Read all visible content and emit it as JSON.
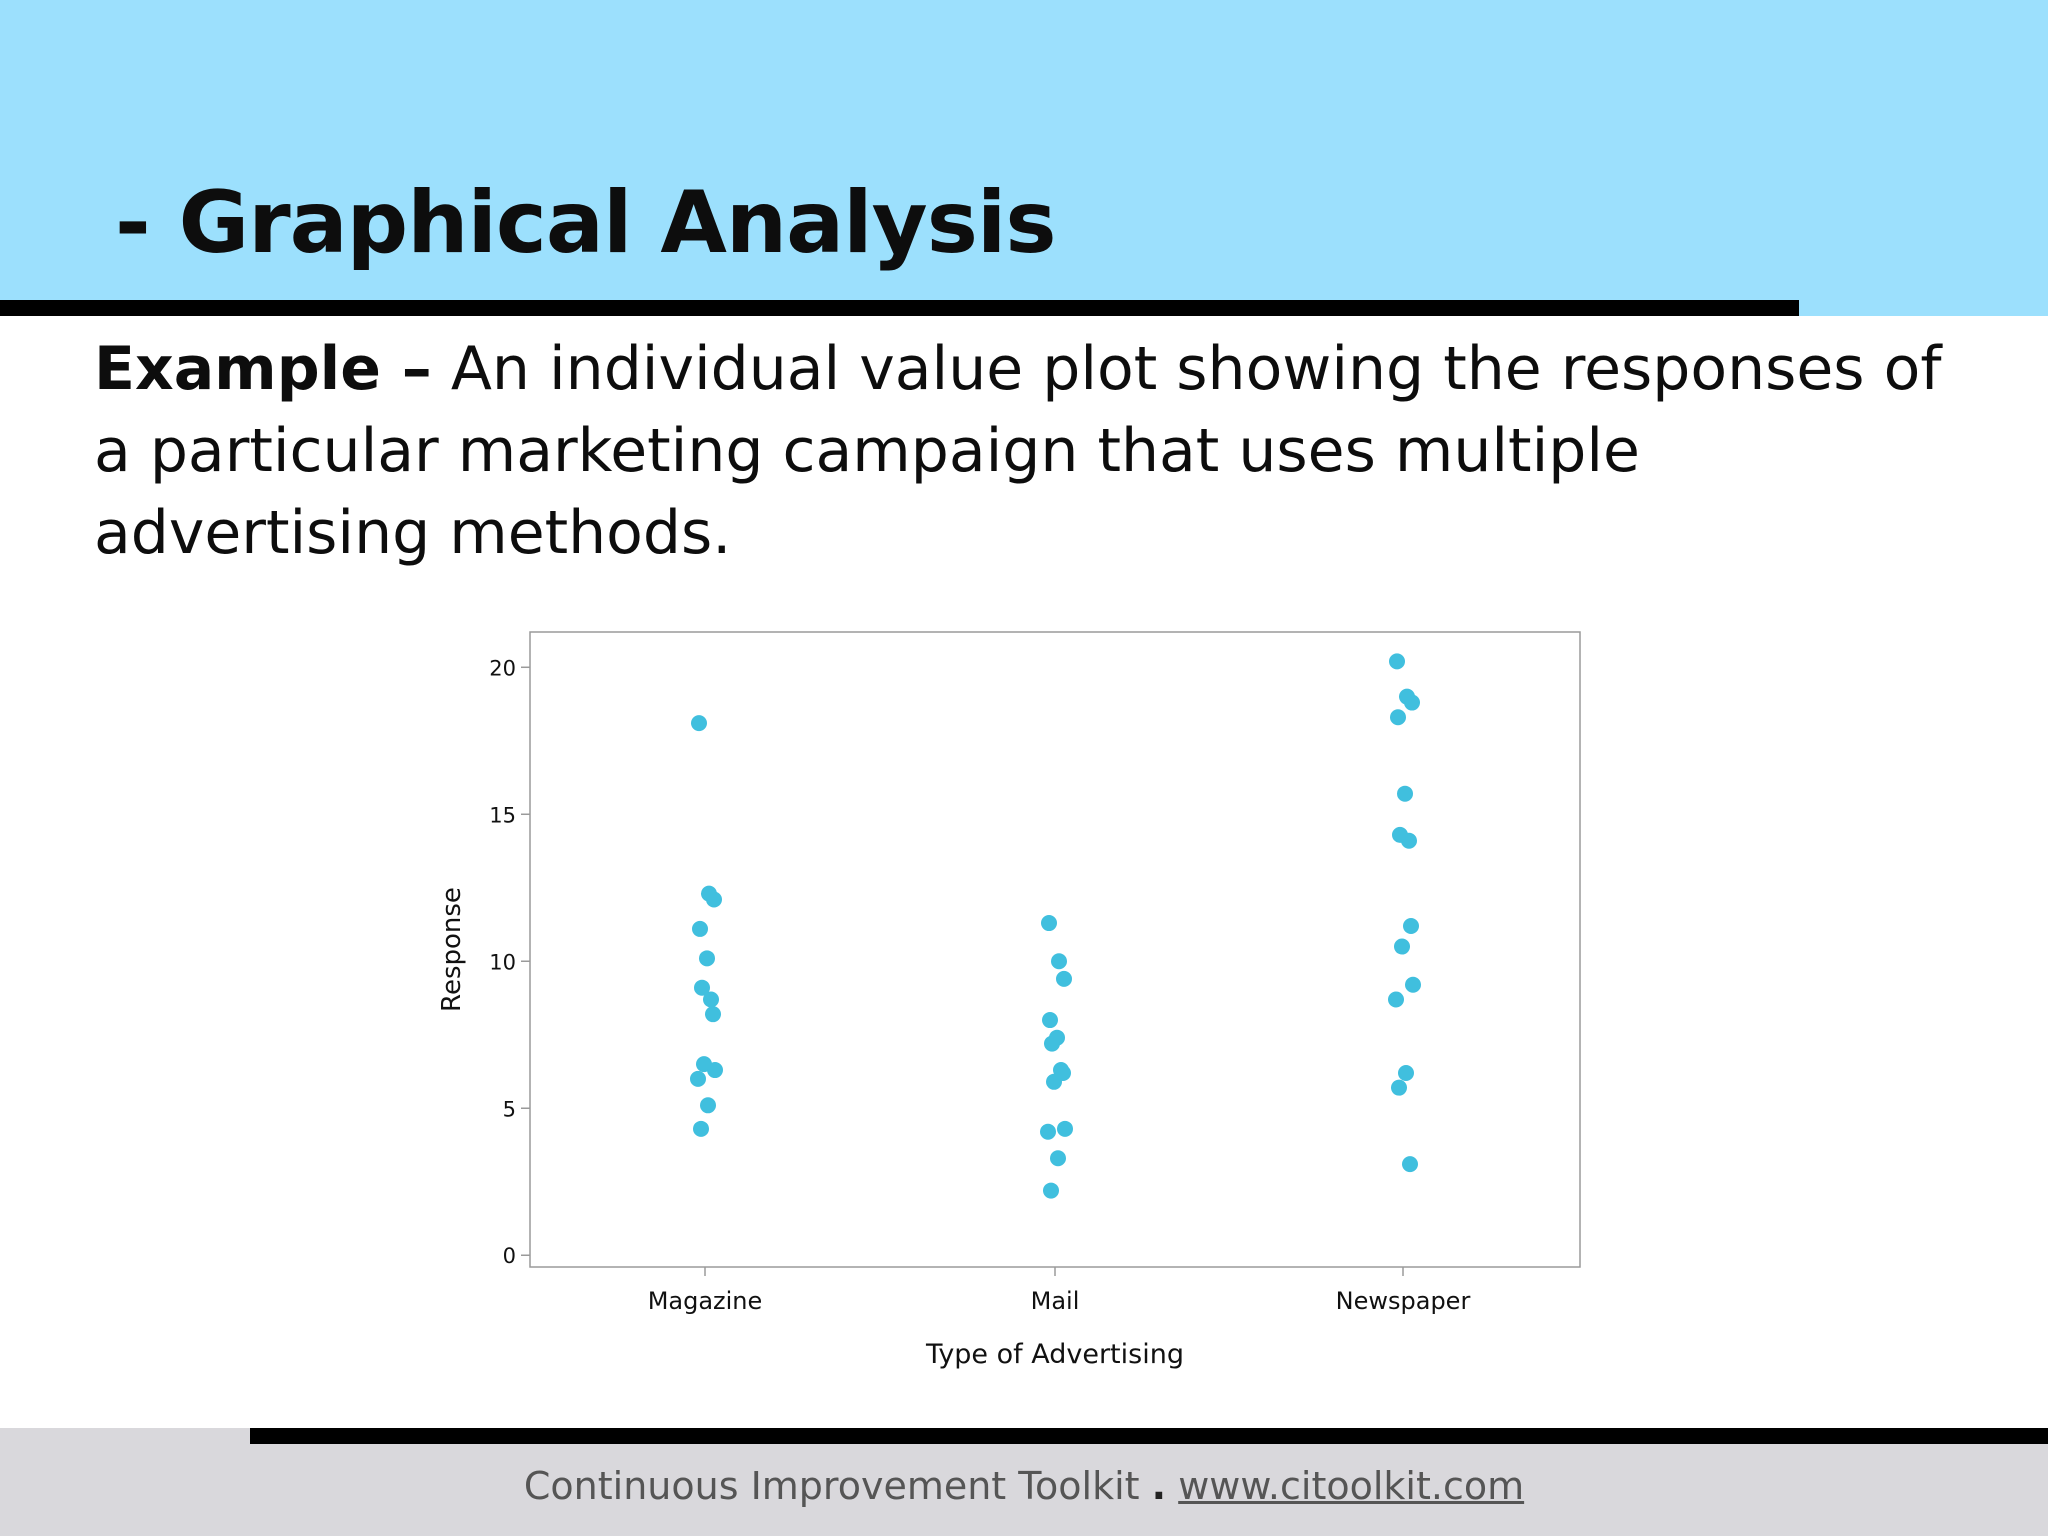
{
  "slide": {
    "title": "- Graphical Analysis",
    "body_lead": "Example –",
    "body_text": " An individual value plot showing the responses of a particular marketing campaign that uses multiple advertising methods."
  },
  "footer": {
    "org": "Continuous Improvement Toolkit",
    "separator": ".",
    "url": "www.citoolkit.com"
  },
  "colors": {
    "header_band": "#9ce0fd",
    "point": "#40bfde",
    "footer_band": "#d9d8dc"
  },
  "chart_data": {
    "type": "scatter",
    "subtype": "individual value plot",
    "xlabel": "Type of Advertising",
    "ylabel": "Response",
    "categories": [
      "Magazine",
      "Mail",
      "Newspaper"
    ],
    "yticks": [
      0,
      5,
      10,
      15,
      20
    ],
    "ylim": [
      -0.4,
      21.2
    ],
    "grid": false,
    "legend": "none",
    "series": [
      {
        "category": "Magazine",
        "values": [
          18.1,
          12.3,
          12.1,
          11.1,
          10.1,
          9.1,
          8.7,
          8.2,
          6.5,
          6.3,
          6.0,
          5.1,
          4.3
        ]
      },
      {
        "category": "Mail",
        "values": [
          11.3,
          10.0,
          9.4,
          8.0,
          7.4,
          7.2,
          6.3,
          6.2,
          5.9,
          4.3,
          4.2,
          3.3,
          2.2
        ]
      },
      {
        "category": "Newspaper",
        "values": [
          20.2,
          19.0,
          18.8,
          18.3,
          15.7,
          14.3,
          14.1,
          11.2,
          10.5,
          9.2,
          8.7,
          6.2,
          5.7,
          3.1
        ]
      }
    ]
  }
}
